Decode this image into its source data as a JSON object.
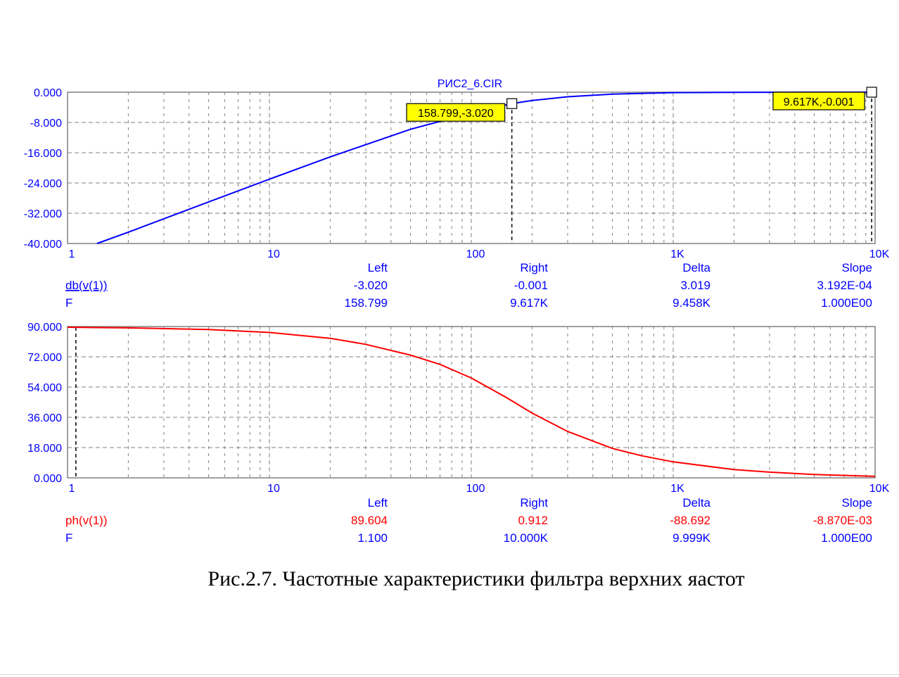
{
  "chart_data": [
    {
      "type": "line",
      "title": "РИС2_6.CIR",
      "xscale": "log",
      "xlim": [
        1,
        10000
      ],
      "ylim": [
        -40,
        0
      ],
      "x_tick_labels": [
        "1",
        "10",
        "100",
        "1K",
        "10K"
      ],
      "y_tick_labels": [
        "0.000",
        "-8.000",
        "-16.000",
        "-24.000",
        "-32.000",
        "-40.000"
      ],
      "grid": true,
      "series": [
        {
          "name": "db(v(1))",
          "color": "#0000ff",
          "x": [
            1.4,
            2,
            5,
            10,
            20,
            50,
            100,
            158.8,
            200,
            300,
            500,
            1000,
            2000,
            5000,
            10000
          ],
          "y": [
            -40,
            -37.0,
            -29.0,
            -23.0,
            -17.1,
            -9.8,
            -5.5,
            -3.02,
            -2.2,
            -1.2,
            -0.5,
            -0.12,
            -0.03,
            -0.005,
            -0.001
          ]
        }
      ],
      "cursors": [
        {
          "x": 158.8,
          "y": -3.02,
          "label": "158.799,-3.020"
        },
        {
          "x": 9617,
          "y": -0.001,
          "label": "9.617K,-0.001"
        }
      ],
      "readout": {
        "headers": [
          "Left",
          "Right",
          "Delta",
          "Slope"
        ],
        "rows": [
          {
            "name": "db(v(1))",
            "color": "#0000ff",
            "values": [
              "-3.020",
              "-0.001",
              "3.019",
              "3.192E-04"
            ]
          },
          {
            "name": "F",
            "color": "#0000ff",
            "values": [
              "158.799",
              "9.617K",
              "9.458K",
              "1.000E00"
            ]
          }
        ]
      }
    },
    {
      "type": "line",
      "xscale": "log",
      "xlim": [
        1,
        10000
      ],
      "ylim": [
        0,
        90
      ],
      "x_tick_labels": [
        "1",
        "10",
        "100",
        "1K",
        "10K"
      ],
      "y_tick_labels": [
        "90.000",
        "72.000",
        "54.000",
        "36.000",
        "18.000",
        "0.000"
      ],
      "grid": true,
      "series": [
        {
          "name": "ph(v(1))",
          "color": "#ff0000",
          "x": [
            1,
            2,
            5,
            10,
            20,
            30,
            50,
            70,
            100,
            150,
            200,
            300,
            500,
            700,
            1000,
            2000,
            3000,
            5000,
            10000
          ],
          "y": [
            89.6,
            89.2,
            88.2,
            86.5,
            83.0,
            79.4,
            73.0,
            67.5,
            59.4,
            47.6,
            38.5,
            27.6,
            17.5,
            13.1,
            9.5,
            4.9,
            3.4,
            2.0,
            0.9
          ]
        }
      ],
      "cursors": [
        {
          "x": 1.1,
          "y": 89.604
        }
      ],
      "readout": {
        "headers": [
          "Left",
          "Right",
          "Delta",
          "Slope"
        ],
        "rows": [
          {
            "name": "ph(v(1))",
            "color": "#ff0000",
            "values": [
              "89.604",
              "0.912",
              "-88.692",
              "-8.870E-03"
            ]
          },
          {
            "name": "F",
            "color": "#0000ff",
            "values": [
              "1.100",
              "10.000K",
              "9.999K",
              "1.000E00"
            ]
          }
        ]
      }
    }
  ],
  "caption": "Рис.2.7. Частотные характеристики фильтра верхних яастот"
}
